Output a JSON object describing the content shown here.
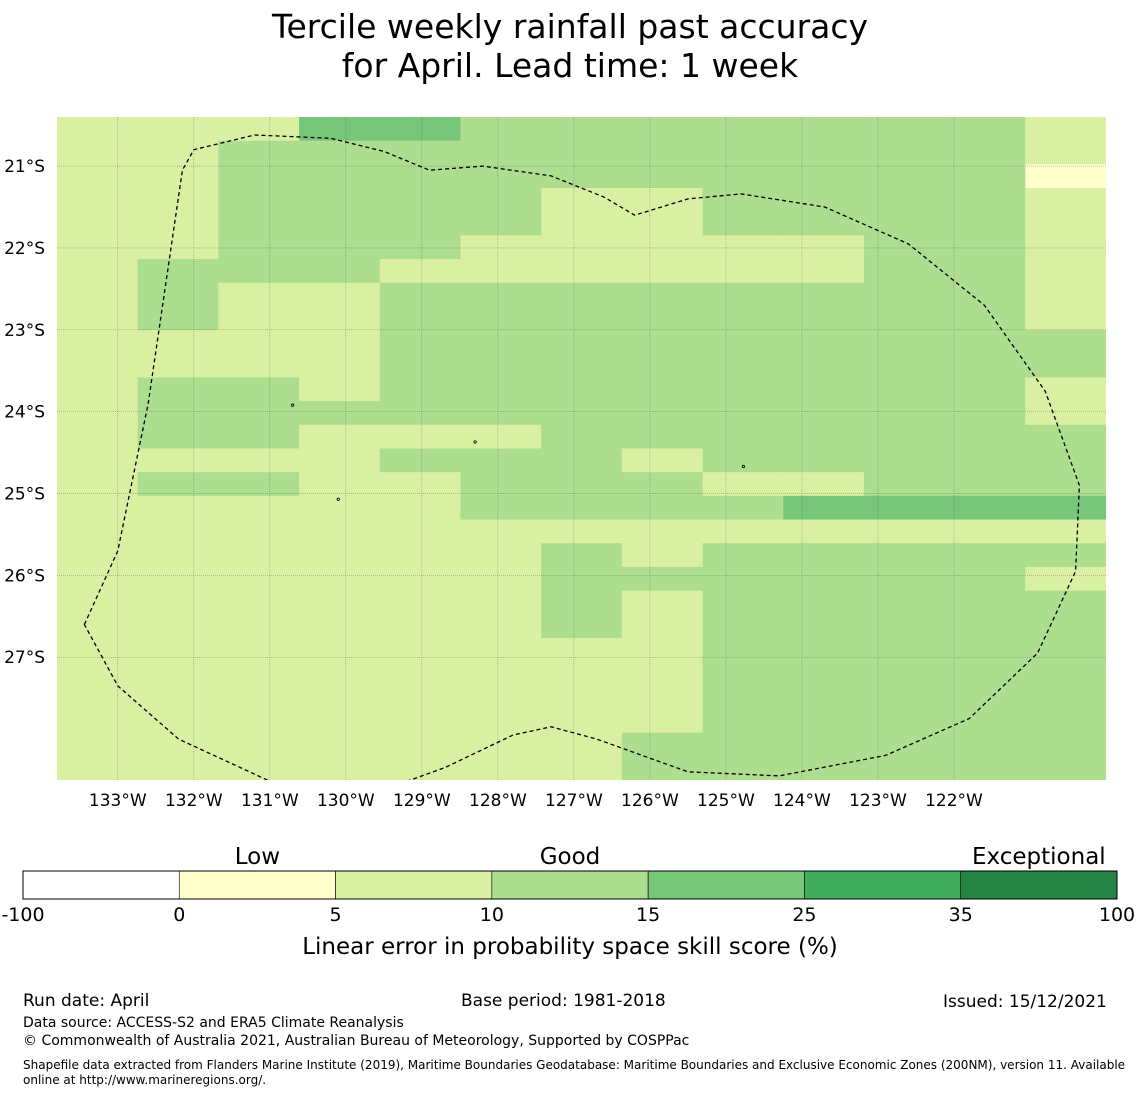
{
  "title": {
    "line1": "Tercile weekly rainfall past accuracy",
    "line2": "for April. Lead time: 1 week"
  },
  "map": {
    "lon_range": [
      -133.8,
      -120.0
    ],
    "lat_range": [
      -28.5,
      -20.4
    ],
    "lon_ticks": [
      -133,
      -132,
      -131,
      -130,
      -129,
      -128,
      -127,
      -126,
      -125,
      -124,
      -123,
      -122
    ],
    "lon_tick_labels": [
      "133°W",
      "132°W",
      "131°W",
      "130°W",
      "129°W",
      "128°W",
      "127°W",
      "126°W",
      "125°W",
      "124°W",
      "123°W",
      "122°W"
    ],
    "lat_ticks": [
      -21,
      -22,
      -23,
      -24,
      -25,
      -26,
      -27
    ],
    "lat_tick_labels": [
      "21°S",
      "22°S",
      "23°S",
      "24°S",
      "25°S",
      "26°S",
      "27°S"
    ],
    "grid": true,
    "boundary": "Pitcairn Islands EEZ (dashed)",
    "grid_colors": [
      "#ffffff",
      "#ffffcc",
      "#d9f0a3",
      "#addd8e",
      "#78c679",
      "#41ab5d",
      "#238443"
    ],
    "cell_class_rows_top_to_bottom": [
      "1113322222221",
      "1122222222221",
      "1122222222220",
      "1122221122221",
      "1122221122221",
      "1122211111221",
      "1222111111221",
      "1211222222221",
      "1211222222221",
      "1111222222222",
      "1111222222222",
      "1221222222221",
      "1222222222221",
      "1221112222222",
      "1111222122222",
      "1221122211222",
      "1111122223333",
      "1111111111111",
      "1111112122222",
      "1111112222221",
      "1111112122222",
      "1111112122222",
      "1111111122222",
      "1111111122222",
      "1111111122222",
      "1111111122222",
      "1111111222222",
      "1111111222222"
    ]
  },
  "chart_data": {
    "type": "heatmap",
    "title": "Tercile weekly rainfall past accuracy for April. Lead time: 1 week",
    "xlabel": "",
    "ylabel": "",
    "xlim": [
      -133.8,
      -120.0
    ],
    "ylim": [
      -28.5,
      -20.4
    ],
    "colorbar": {
      "label": "Linear error in probability space skill score (%)",
      "boundaries": [
        -100,
        0,
        5,
        10,
        15,
        25,
        35,
        100
      ],
      "tick_labels": [
        "-100",
        "0",
        "5",
        "10",
        "15",
        "25",
        "35",
        "100"
      ],
      "colors": [
        "#ffffff",
        "#ffffcc",
        "#d9f0a3",
        "#addd8e",
        "#78c679",
        "#41ab5d",
        "#238443"
      ],
      "category_labels": [
        "Low",
        "Good",
        "Exceptional"
      ]
    }
  },
  "footer": {
    "run_date": "Run date: April",
    "base_period": "Base period: 1981-2018",
    "issued": "Issued: 15/12/2021",
    "data_source": "Data source: ACCESS-S2 and ERA5 Climate Reanalysis",
    "copyright": "© Commonwealth of Australia 2021, Australian Bureau of Meteorology, Supported by COSPPac",
    "shapefile_line1": "Shapefile data extracted from Flanders Marine Institute (2019), Maritime Boundaries Geodatabase: Maritime Boundaries and Exclusive Economic Zones (200NM), version 11. Available",
    "shapefile_line2": "online at http://www.marineregions.org/."
  }
}
